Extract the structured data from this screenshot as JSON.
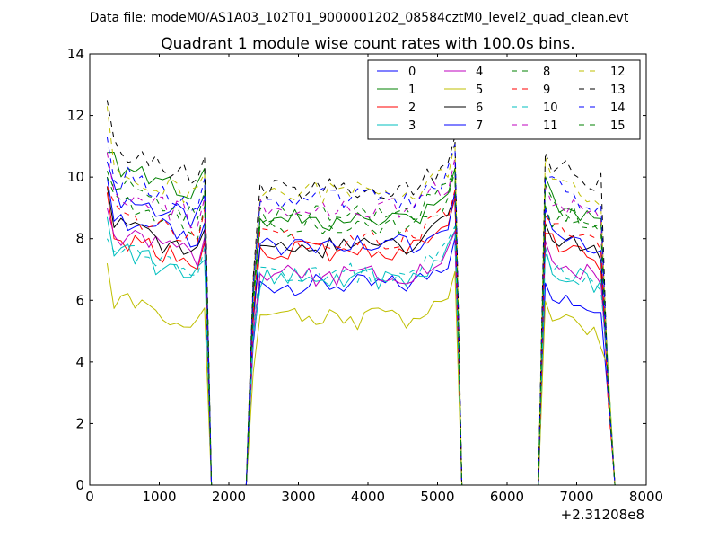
{
  "chart_data": {
    "type": "line",
    "suptitle": "Data file: modeM0/AS1A03_102T01_9000001202_08584cztM0_level2_quad_clean.evt",
    "title": "Quadrant 1 module wise count rates with 100.0s bins.",
    "xlabel": "",
    "ylabel": "",
    "x_offset_label": "+2.31208e8",
    "xlim": [
      0,
      8000
    ],
    "ylim": [
      0,
      14
    ],
    "xticks": [
      0,
      1000,
      2000,
      3000,
      4000,
      5000,
      6000,
      7000,
      8000
    ],
    "yticks": [
      0,
      2,
      4,
      6,
      8,
      10,
      12,
      14
    ],
    "legend_position": "top-right",
    "legend_columns": 4,
    "x": [
      250,
      350,
      450,
      550,
      650,
      750,
      850,
      950,
      1050,
      1150,
      1250,
      1350,
      1450,
      1550,
      1650,
      1750,
      1850,
      1950,
      2050,
      2150,
      2250,
      2350,
      2450,
      2550,
      2650,
      2750,
      2850,
      2950,
      3050,
      3150,
      3250,
      3350,
      3450,
      3550,
      3650,
      3750,
      3850,
      3950,
      4050,
      4150,
      4250,
      4350,
      4450,
      4550,
      4650,
      4750,
      4850,
      4950,
      5050,
      5150,
      5250,
      5350,
      5450,
      5550,
      5650,
      5750,
      5850,
      5950,
      6050,
      6150,
      6250,
      6350,
      6450,
      6550,
      6650,
      6750,
      6850,
      6950,
      7050,
      7150,
      7250,
      7350,
      7450,
      7550
    ],
    "series": [
      {
        "name": "0",
        "color": "#0000ff",
        "dash": "solid",
        "base": [
          9.5,
          6.5,
          6.4
        ],
        "first": 10.5
      },
      {
        "name": "1",
        "color": "#008000",
        "dash": "solid",
        "base": [
          10.5,
          8.6,
          9.4
        ],
        "first": 10.8
      },
      {
        "name": "2",
        "color": "#ff0000",
        "dash": "solid",
        "base": [
          8.1,
          7.6,
          8.0
        ],
        "first": 9.5
      },
      {
        "name": "3",
        "color": "#00bfbf",
        "dash": "solid",
        "base": [
          7.6,
          6.7,
          7.2
        ],
        "first": 8.7
      },
      {
        "name": "4",
        "color": "#bf00bf",
        "dash": "solid",
        "base": [
          8.3,
          6.8,
          7.5
        ],
        "first": 9.0
      },
      {
        "name": "5",
        "color": "#bfbf00",
        "dash": "solid",
        "base": [
          6.0,
          5.4,
          5.6
        ],
        "first": 7.2
      },
      {
        "name": "6",
        "color": "#000000",
        "dash": "solid",
        "base": [
          8.4,
          7.7,
          8.2
        ],
        "first": 9.7
      },
      {
        "name": "7",
        "color": "#0000ff",
        "dash": "solid",
        "base": [
          8.8,
          7.8,
          8.5
        ],
        "first": 10.0
      },
      {
        "name": "8",
        "color": "#008000",
        "dash": "dashed",
        "base": [
          9.2,
          8.4,
          8.8
        ],
        "first": 10.0
      },
      {
        "name": "9",
        "color": "#ff0000",
        "dash": "dashed",
        "base": [
          9.0,
          8.0,
          8.4
        ],
        "first": 9.7
      },
      {
        "name": "10",
        "color": "#00bfbf",
        "dash": "dashed",
        "base": [
          7.8,
          6.9,
          7.3
        ],
        "first": 8.0
      },
      {
        "name": "11",
        "color": "#bf00bf",
        "dash": "dashed",
        "base": [
          9.6,
          9.0,
          9.4
        ],
        "first": 10.8
      },
      {
        "name": "12",
        "color": "#bfbf00",
        "dash": "dashed",
        "base": [
          10.4,
          9.5,
          10.0
        ],
        "first": 12.3
      },
      {
        "name": "13",
        "color": "#000000",
        "dash": "dashed",
        "base": [
          11.0,
          9.6,
          10.6
        ],
        "first": 12.5
      },
      {
        "name": "14",
        "color": "#0000ff",
        "dash": "dashed",
        "base": [
          10.2,
          9.3,
          9.8
        ],
        "first": 11.3
      },
      {
        "name": "15",
        "color": "#008000",
        "dash": "dashed",
        "base": [
          9.8,
          8.8,
          9.2
        ],
        "first": 10.2
      }
    ],
    "segments": [
      {
        "x_start": 250,
        "x_end": 1550,
        "edge_x": 1650
      },
      {
        "x_start": 2350,
        "x_end": 5150,
        "edge_x": 5250
      },
      {
        "x_start": 6550,
        "x_end": 7450,
        "edge_x": 7450
      }
    ]
  }
}
